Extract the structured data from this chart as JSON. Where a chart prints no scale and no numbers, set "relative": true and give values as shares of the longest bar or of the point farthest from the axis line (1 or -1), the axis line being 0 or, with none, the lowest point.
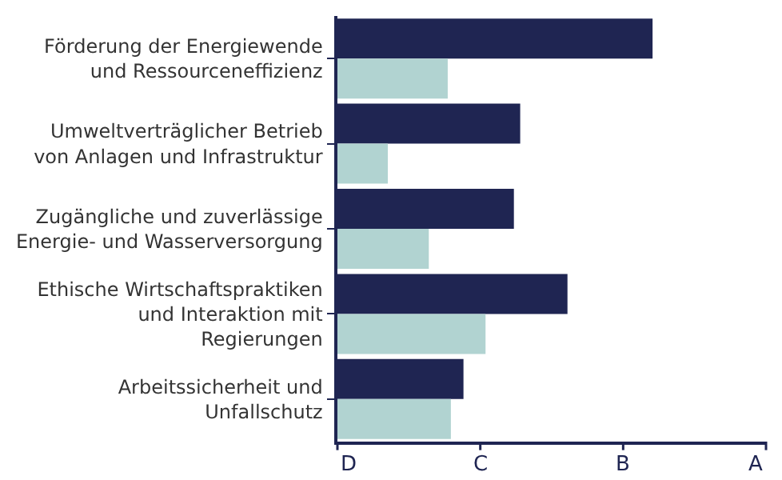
{
  "chart_data": {
    "type": "bar",
    "orientation": "horizontal",
    "relative": true,
    "categories": [
      "Förderung der Energiewende\nund Ressourceneffizienz",
      "Umweltverträglicher Betrieb\nvon Anlagen und Infrastruktur",
      "Zugängliche und zuverlässige\nEnergie- und Wasserversorgung",
      "Ethische Wirtschaftspraktiken\nund Interaktion mit\nRegierungen",
      "Arbeitssicherheit und\nUnfallschutz"
    ],
    "series": [
      {
        "color": "#1f2552",
        "values": [
          1,
          0.58,
          0.56,
          0.73,
          0.4
        ]
      },
      {
        "color": "#b1d3d1",
        "values": [
          0.35,
          0.16,
          0.29,
          0.47,
          0.36
        ]
      }
    ],
    "annotations": [
      "D",
      "C",
      "B",
      "A"
    ]
  }
}
